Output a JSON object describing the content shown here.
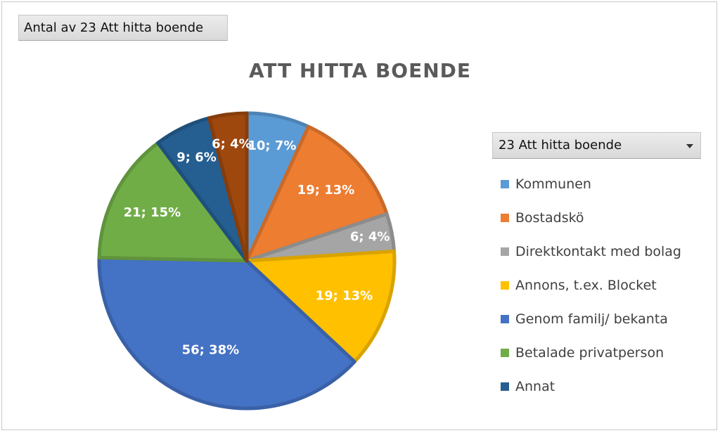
{
  "field_button": {
    "label": "Antal av 23 Att hitta boende"
  },
  "chart_data": {
    "type": "pie",
    "title": "ATT HITTA BOENDE",
    "legend_title": "23 Att hitta boende",
    "legend_position": "right",
    "slices": [
      {
        "name": "Kommunen",
        "value": 10,
        "percent": 7,
        "label": "10; 7%",
        "color": "#5b9bd5"
      },
      {
        "name": "Bostadskö",
        "value": 19,
        "percent": 13,
        "label": "19; 13%",
        "color": "#ed7d31"
      },
      {
        "name": "Direktkontakt med bolag",
        "value": 6,
        "percent": 4,
        "label": "6; 4%",
        "color": "#a5a5a5"
      },
      {
        "name": "Annons, t.ex. Blocket",
        "value": 19,
        "percent": 13,
        "label": "19; 13%",
        "color": "#ffc000"
      },
      {
        "name": "Genom familj/ bekanta",
        "value": 56,
        "percent": 38,
        "label": "56; 38%",
        "color": "#4472c4"
      },
      {
        "name": "Betalade privatperson",
        "value": 21,
        "percent": 15,
        "label": "21; 15%",
        "color": "#70ad47"
      },
      {
        "name": "Annat",
        "value": 9,
        "percent": 6,
        "label": "9; 6%",
        "color": "#255e91"
      },
      {
        "name": "",
        "value": 6,
        "percent": 4,
        "label": "6; 4%",
        "color": "#9e480e"
      }
    ]
  }
}
